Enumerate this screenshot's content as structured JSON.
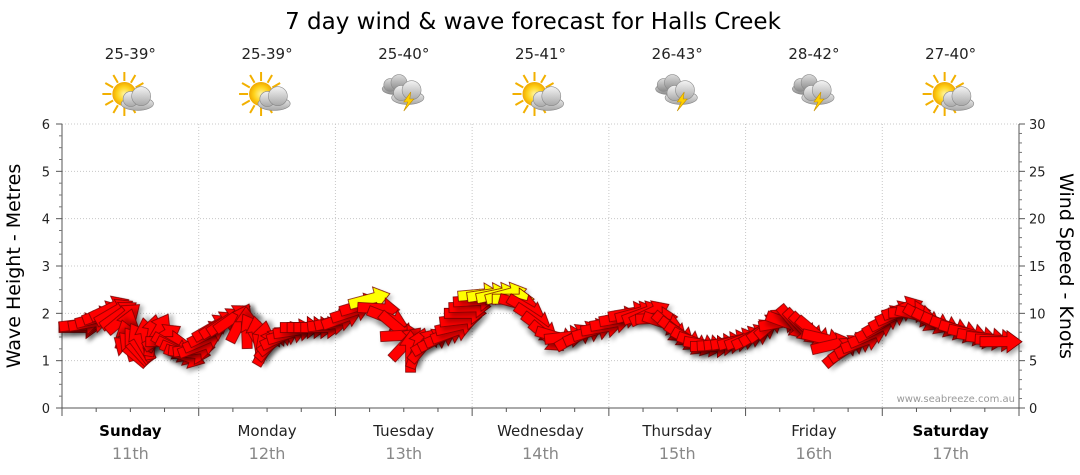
{
  "chart_data": {
    "type": "line",
    "title": "7 day wind & wave forecast for Halls Creek",
    "y_left_label": "Wave Height - Metres",
    "y_right_label": "Wind Speed - Knots",
    "y_left_range": [
      0,
      6
    ],
    "y_left_ticks": [
      "0",
      "1",
      "2",
      "3",
      "4",
      "5",
      "6"
    ],
    "y_right_range": [
      0,
      30
    ],
    "y_right_ticks": [
      "0",
      "5",
      "10",
      "15",
      "20",
      "25",
      "30"
    ],
    "grid": true,
    "credit": "www.seabreeze.com.au",
    "days": [
      {
        "name": "Sunday",
        "date": "11th",
        "temp": "25-39°",
        "icon": "partly-cloudy-sun-icon",
        "bold": true
      },
      {
        "name": "Monday",
        "date": "12th",
        "temp": "25-39°",
        "icon": "partly-cloudy-sun-icon",
        "bold": false
      },
      {
        "name": "Tuesday",
        "date": "13th",
        "temp": "25-40°",
        "icon": "thunderstorm-icon",
        "bold": false
      },
      {
        "name": "Wednesday",
        "date": "14th",
        "temp": "25-41°",
        "icon": "partly-cloudy-sun-icon",
        "bold": false
      },
      {
        "name": "Thursday",
        "date": "15th",
        "temp": "26-43°",
        "icon": "thunderstorm-icon",
        "bold": false
      },
      {
        "name": "Friday",
        "date": "16th",
        "temp": "28-42°",
        "icon": "thunderstorm-icon",
        "bold": false
      },
      {
        "name": "Saturday",
        "date": "17th",
        "temp": "27-40°",
        "icon": "partly-cloudy-sun-icon",
        "bold": true
      }
    ],
    "series": [
      {
        "unit": "knots",
        "color_normal": "#ff0000",
        "color_light": "#ffff00",
        "points": [
          {
            "t": 0.0,
            "knots": 8.5,
            "dir": 0
          },
          {
            "t": 0.2,
            "knots": 9,
            "dir": -10
          },
          {
            "t": 0.35,
            "knots": 10.5,
            "dir": -25
          },
          {
            "t": 0.45,
            "knots": 9.5,
            "dir": -40
          },
          {
            "t": 0.5,
            "knots": 6,
            "dir": -140
          },
          {
            "t": 0.58,
            "knots": 7,
            "dir": -120
          },
          {
            "t": 0.7,
            "knots": 8,
            "dir": -60
          },
          {
            "t": 0.8,
            "knots": 6.5,
            "dir": 30
          },
          {
            "t": 0.9,
            "knots": 5.5,
            "dir": 20
          },
          {
            "t": 1.0,
            "knots": 6.5,
            "dir": -20
          },
          {
            "t": 1.1,
            "knots": 8.5,
            "dir": -30
          },
          {
            "t": 1.25,
            "knots": 9.5,
            "dir": -35
          },
          {
            "t": 1.4,
            "knots": 8,
            "dir": -120
          },
          {
            "t": 1.5,
            "knots": 6.5,
            "dir": -60
          },
          {
            "t": 1.6,
            "knots": 7.5,
            "dir": -25
          },
          {
            "t": 1.75,
            "knots": 8.5,
            "dir": 0
          },
          {
            "t": 1.9,
            "knots": 8.5,
            "dir": 0
          },
          {
            "t": 2.05,
            "knots": 9.5,
            "dir": -20
          },
          {
            "t": 2.25,
            "knots": 11.5,
            "dir": -15
          },
          {
            "t": 2.45,
            "knots": 8.5,
            "dir": 40
          },
          {
            "t": 2.55,
            "knots": 6,
            "dir": -90
          },
          {
            "t": 2.7,
            "knots": 7,
            "dir": -30
          },
          {
            "t": 2.85,
            "knots": 8,
            "dir": -20
          },
          {
            "t": 2.95,
            "knots": 10,
            "dir": 0
          },
          {
            "t": 3.05,
            "knots": 12,
            "dir": -5
          },
          {
            "t": 3.25,
            "knots": 12,
            "dir": -15
          },
          {
            "t": 3.4,
            "knots": 10.5,
            "dir": 30
          },
          {
            "t": 3.55,
            "knots": 7.5,
            "dir": 40
          },
          {
            "t": 3.75,
            "knots": 7.5,
            "dir": -30
          },
          {
            "t": 3.95,
            "knots": 8.5,
            "dir": -10
          },
          {
            "t": 4.15,
            "knots": 10,
            "dir": -10
          },
          {
            "t": 4.3,
            "knots": 10,
            "dir": -25
          },
          {
            "t": 4.45,
            "knots": 8.5,
            "dir": 40
          },
          {
            "t": 4.6,
            "knots": 7,
            "dir": 30
          },
          {
            "t": 4.75,
            "knots": 6.5,
            "dir": 0
          },
          {
            "t": 4.9,
            "knots": 7,
            "dir": -10
          },
          {
            "t": 5.05,
            "knots": 7.5,
            "dir": -25
          },
          {
            "t": 5.2,
            "knots": 9,
            "dir": -40
          },
          {
            "t": 5.35,
            "knots": 9,
            "dir": 50
          },
          {
            "t": 5.5,
            "knots": 8,
            "dir": 40
          },
          {
            "t": 5.7,
            "knots": 6,
            "dir": -40
          },
          {
            "t": 5.85,
            "knots": 7,
            "dir": -20
          },
          {
            "t": 6.0,
            "knots": 9,
            "dir": -30
          },
          {
            "t": 6.15,
            "knots": 10.5,
            "dir": -20
          },
          {
            "t": 6.3,
            "knots": 9.5,
            "dir": 30
          },
          {
            "t": 6.5,
            "knots": 8.5,
            "dir": 20
          },
          {
            "t": 6.7,
            "knots": 7.5,
            "dir": 10
          },
          {
            "t": 6.9,
            "knots": 7,
            "dir": 0
          }
        ]
      }
    ]
  }
}
